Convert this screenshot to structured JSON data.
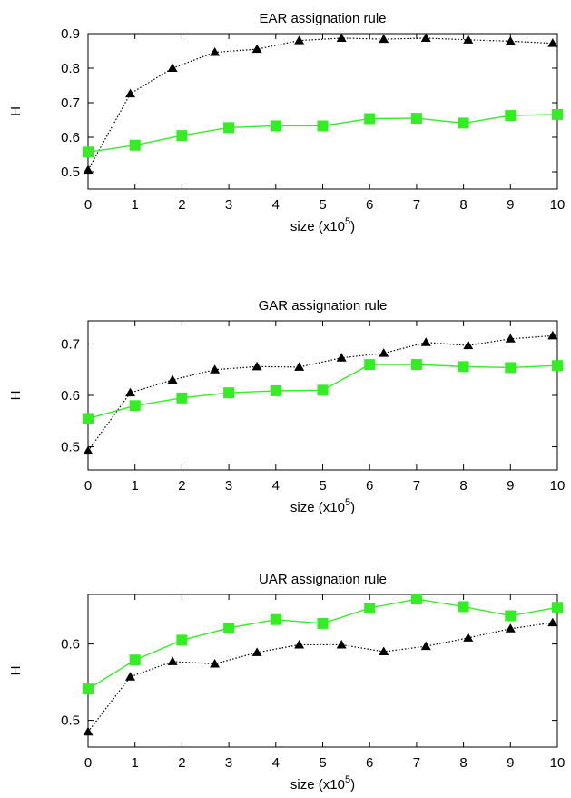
{
  "chart_data": [
    {
      "type": "line",
      "title": "EAR assignation rule",
      "xlabel": "size (x10",
      "xlabel_sup": "5",
      "xlabel_close": ")",
      "ylabel": "H",
      "xlim": [
        0,
        10
      ],
      "ylim": [
        0.45,
        0.9
      ],
      "xticks": [
        "0",
        "1",
        "2",
        "3",
        "4",
        "5",
        "6",
        "7",
        "8",
        "9",
        "10"
      ],
      "yticks": [
        {
          "v": 0.5,
          "label": "0.5"
        },
        {
          "v": 0.6,
          "label": "0.6"
        },
        {
          "v": 0.7,
          "label": "0.7"
        },
        {
          "v": 0.8,
          "label": "0.8"
        },
        {
          "v": 0.9,
          "label": "0.9"
        }
      ],
      "series": [
        {
          "marker": "triangle",
          "color": "#000000",
          "dash": "dotted",
          "x": [
            0,
            0.9,
            1.8,
            2.7,
            3.6,
            4.5,
            5.4,
            6.3,
            7.2,
            8.1,
            9.0,
            9.9
          ],
          "y": [
            0.505,
            0.726,
            0.8,
            0.846,
            0.855,
            0.88,
            0.887,
            0.884,
            0.887,
            0.882,
            0.878,
            0.872
          ]
        },
        {
          "marker": "square",
          "color": "#33ee22",
          "dash": "solid",
          "x": [
            0,
            1,
            2,
            3,
            4,
            5,
            6,
            7,
            8,
            9,
            10
          ],
          "y": [
            0.557,
            0.577,
            0.605,
            0.628,
            0.633,
            0.633,
            0.654,
            0.655,
            0.641,
            0.663,
            0.666
          ]
        }
      ]
    },
    {
      "type": "line",
      "title": "GAR assignation rule",
      "xlabel": "size (x10",
      "xlabel_sup": "5",
      "xlabel_close": ")",
      "ylabel": "H",
      "xlim": [
        0,
        10
      ],
      "ylim": [
        0.455,
        0.745
      ],
      "xticks": [
        "0",
        "1",
        "2",
        "3",
        "4",
        "5",
        "6",
        "7",
        "8",
        "9",
        "10"
      ],
      "yticks": [
        {
          "v": 0.5,
          "label": "0.5"
        },
        {
          "v": 0.6,
          "label": "0.6"
        },
        {
          "v": 0.7,
          "label": "0.7"
        }
      ],
      "series": [
        {
          "marker": "triangle",
          "color": "#000000",
          "dash": "dotted",
          "x": [
            0,
            0.9,
            1.8,
            2.7,
            3.6,
            4.5,
            5.4,
            6.3,
            7.2,
            8.1,
            9.0,
            9.9
          ],
          "y": [
            0.492,
            0.605,
            0.63,
            0.65,
            0.656,
            0.655,
            0.673,
            0.682,
            0.703,
            0.697,
            0.71,
            0.716
          ]
        },
        {
          "marker": "square",
          "color": "#33ee22",
          "dash": "solid",
          "x": [
            0,
            1,
            2,
            3,
            4,
            5,
            6,
            7,
            8,
            9,
            10
          ],
          "y": [
            0.555,
            0.58,
            0.595,
            0.605,
            0.609,
            0.61,
            0.66,
            0.66,
            0.656,
            0.654,
            0.658
          ]
        }
      ]
    },
    {
      "type": "line",
      "title": "UAR assignation rule",
      "xlabel": "size (x10",
      "xlabel_sup": "5",
      "xlabel_close": ")",
      "ylabel": "H",
      "xlim": [
        0,
        10
      ],
      "ylim": [
        0.465,
        0.665
      ],
      "xticks": [
        "0",
        "1",
        "2",
        "3",
        "4",
        "5",
        "6",
        "7",
        "8",
        "9",
        "10"
      ],
      "yticks": [
        {
          "v": 0.5,
          "label": "0.5"
        },
        {
          "v": 0.6,
          "label": "0.6"
        }
      ],
      "series": [
        {
          "marker": "triangle",
          "color": "#000000",
          "dash": "dotted",
          "x": [
            0,
            0.9,
            1.8,
            2.7,
            3.6,
            4.5,
            5.4,
            6.3,
            7.2,
            8.1,
            9.0,
            9.9
          ],
          "y": [
            0.485,
            0.557,
            0.577,
            0.574,
            0.589,
            0.599,
            0.599,
            0.59,
            0.597,
            0.608,
            0.62,
            0.628
          ]
        },
        {
          "marker": "square",
          "color": "#33ee22",
          "dash": "solid",
          "x": [
            0,
            1,
            2,
            3,
            4,
            5,
            6,
            7,
            8,
            9,
            10
          ],
          "y": [
            0.541,
            0.579,
            0.605,
            0.621,
            0.632,
            0.627,
            0.647,
            0.659,
            0.649,
            0.637,
            0.648
          ]
        }
      ]
    }
  ]
}
